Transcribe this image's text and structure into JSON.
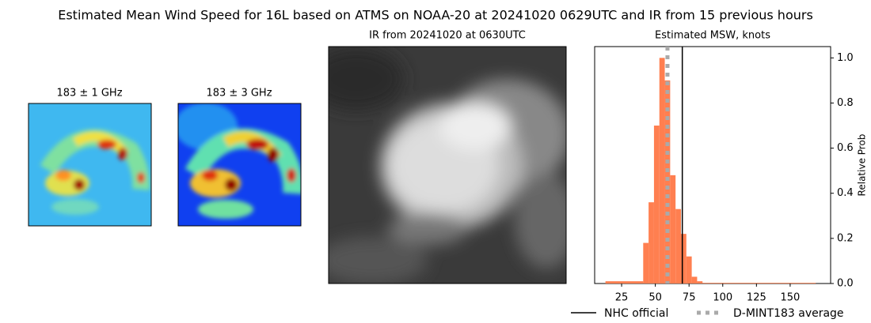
{
  "title": "Estimated Mean Wind Speed for 16L based on ATMS on NOAA-20 at 20241020 0629UTC and IR from 15 previous hours",
  "panels": [
    {
      "title": "183 ± 1 GHz"
    },
    {
      "title": "183 ± 3 GHz"
    },
    {
      "title": "IR from 20241020 at 0630UTC"
    }
  ],
  "chart_data": {
    "type": "histogram",
    "title": "Estimated MSW, knots",
    "y_label": "Relative Prob",
    "bins": [
      13,
      41,
      45,
      49,
      53,
      57,
      61,
      65,
      69,
      73,
      77,
      81,
      85,
      169
    ],
    "values": [
      0.01,
      0.18,
      0.36,
      0.7,
      1.0,
      0.9,
      0.48,
      0.33,
      0.22,
      0.12,
      0.03,
      0.01,
      0.003
    ],
    "color": "#ff7f50",
    "xlim": [
      5,
      180
    ],
    "xticks": [
      25,
      50,
      75,
      100,
      125,
      150
    ],
    "ylim": [
      0,
      1.05
    ],
    "yticks": [
      {
        "value": 0,
        "label": "0.0"
      },
      {
        "value": 0.2,
        "label": "0.2"
      },
      {
        "value": 0.4,
        "label": "0.4"
      },
      {
        "value": 0.6,
        "label": "0.6"
      },
      {
        "value": 0.8,
        "label": "0.8"
      },
      {
        "value": 1.0,
        "label": "1.0"
      }
    ],
    "lines": [
      {
        "name": "NHC official",
        "x": 70,
        "color": "#000000",
        "style": "solid"
      },
      {
        "name": "D-MINT183 average",
        "x": 59,
        "color": "#aaaaaa",
        "style": "dotted"
      }
    ]
  }
}
